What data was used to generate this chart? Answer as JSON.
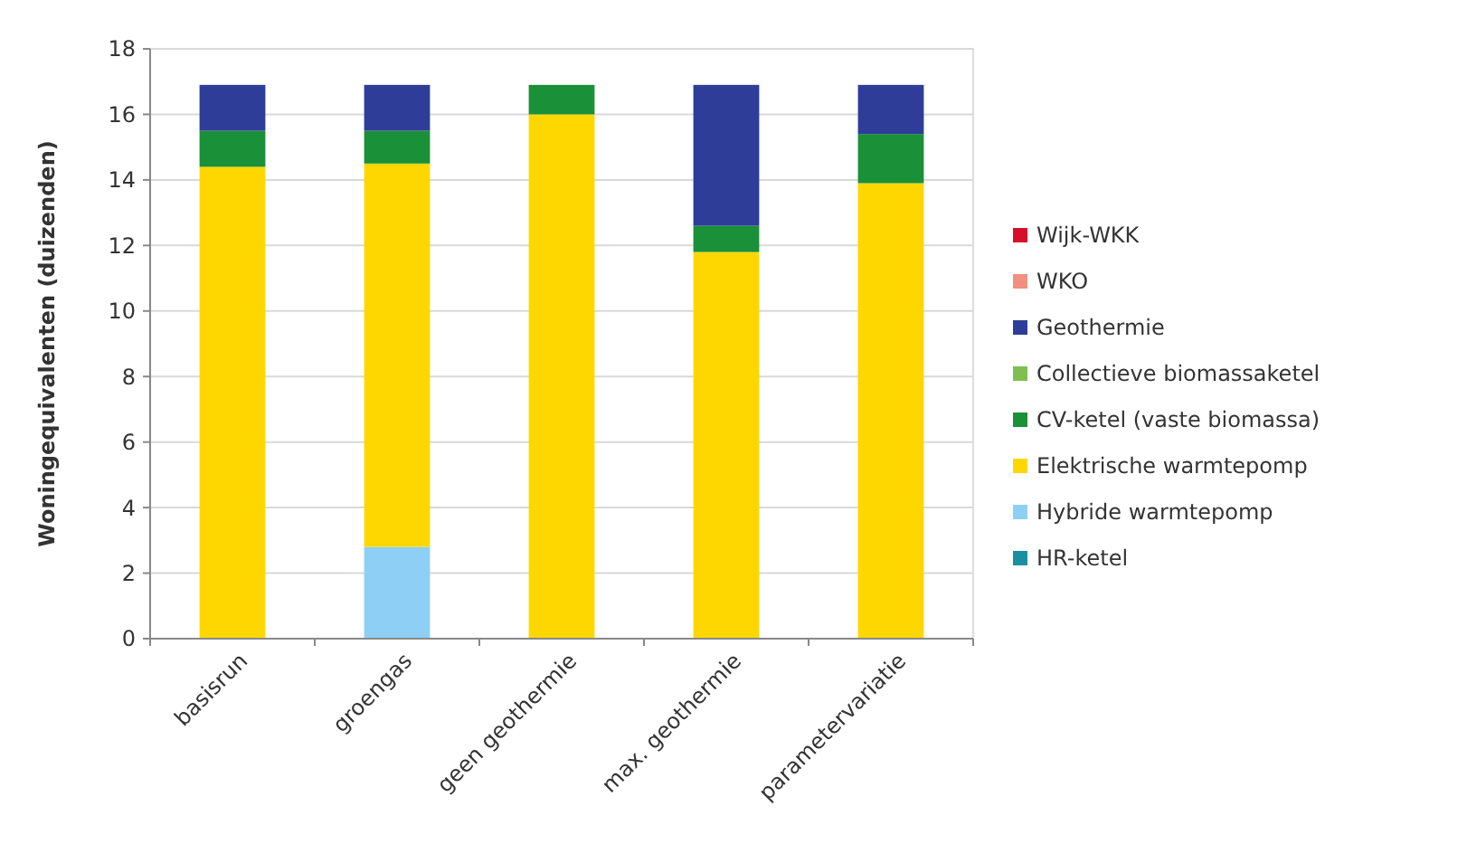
{
  "chart_data": {
    "type": "bar",
    "stacked": true,
    "ylabel": "Woningequivalenten (duizenden)",
    "categories": [
      "basisrun",
      "groengas",
      "geen geothermie",
      "max. geothermie",
      "parametervariatie"
    ],
    "series": [
      {
        "name": "HR-ketel",
        "color": "#1a8f9f",
        "values": [
          0,
          0,
          0,
          0,
          0
        ]
      },
      {
        "name": "Hybride warmtepomp",
        "color": "#8ecff5",
        "values": [
          0,
          2.8,
          0,
          0,
          0
        ]
      },
      {
        "name": "Elektrische warmtepomp",
        "color": "#ffd700",
        "values": [
          14.4,
          11.7,
          16.0,
          11.8,
          13.9
        ]
      },
      {
        "name": "CV-ketel (vaste biomassa)",
        "color": "#1a9038",
        "values": [
          1.1,
          1.0,
          0.9,
          0.8,
          1.5
        ]
      },
      {
        "name": "Collectieve biomassaketel",
        "color": "#7fbf50",
        "values": [
          0,
          0,
          0,
          0,
          0
        ]
      },
      {
        "name": "Geothermie",
        "color": "#2e3d97",
        "values": [
          1.4,
          1.4,
          0,
          4.3,
          1.5
        ]
      },
      {
        "name": "WKO",
        "color": "#f09080",
        "values": [
          0,
          0,
          0,
          0,
          0
        ]
      },
      {
        "name": "Wijk-WKK",
        "color": "#d4102a",
        "values": [
          0,
          0,
          0,
          0,
          0
        ]
      }
    ],
    "ylim": [
      0,
      18
    ],
    "yticks": [
      0,
      2,
      4,
      6,
      8,
      10,
      12,
      14,
      16,
      18
    ],
    "grid": "y",
    "legend": "right"
  }
}
